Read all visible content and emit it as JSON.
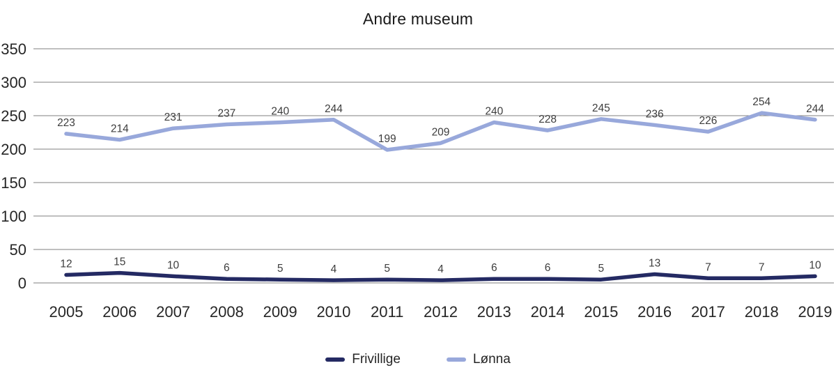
{
  "chart_data": {
    "type": "line",
    "title": "Andre museum",
    "categories": [
      "2005",
      "2006",
      "2007",
      "2008",
      "2009",
      "2010",
      "2011",
      "2012",
      "2013",
      "2014",
      "2015",
      "2016",
      "2017",
      "2018",
      "2019"
    ],
    "series": [
      {
        "name": "Frivillige",
        "color": "#242a63",
        "values": [
          12,
          15,
          10,
          6,
          5,
          4,
          5,
          4,
          6,
          6,
          5,
          13,
          7,
          7,
          10
        ]
      },
      {
        "name": "Lønna",
        "color": "#98a8db",
        "values": [
          223,
          214,
          231,
          237,
          240,
          244,
          199,
          209,
          240,
          228,
          245,
          236,
          226,
          254,
          244
        ]
      }
    ],
    "yticks": [
      0,
      50,
      100,
      150,
      200,
      250,
      300,
      350
    ],
    "ylim": [
      0,
      350
    ],
    "grid": true,
    "legend_position": "bottom",
    "data_labels": true,
    "xlabel": "",
    "ylabel": "",
    "colors": {
      "grid": "#7f7f7f",
      "axis_text": "#262626",
      "data_label_text": "#3d3d3d",
      "title_text": "#1a1a1a"
    }
  }
}
